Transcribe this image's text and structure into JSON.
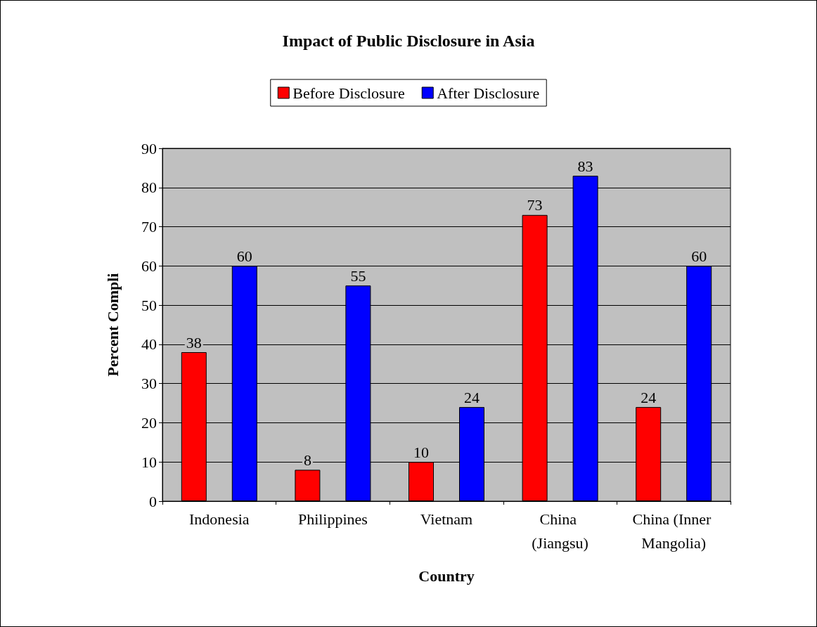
{
  "chart_data": {
    "type": "bar",
    "title": "Impact of Public Disclosure in Asia",
    "xlabel": "Country",
    "ylabel": "Percent Compli",
    "categories": [
      "Indonesia",
      "Philippines",
      "Vietnam",
      "China (Jiangsu)",
      "China (Inner Mangolia)"
    ],
    "series": [
      {
        "name": "Before Disclosure",
        "color": "#ff0000",
        "values": [
          38,
          8,
          10,
          73,
          24
        ]
      },
      {
        "name": "After Disclosure",
        "color": "#0000ff",
        "values": [
          60,
          55,
          24,
          83,
          60
        ]
      }
    ],
    "ylim": [
      0,
      90
    ],
    "yticks": [
      0,
      10,
      20,
      30,
      40,
      50,
      60,
      70,
      80,
      90
    ],
    "grid": "y",
    "legend": "top",
    "data_labels": true
  }
}
